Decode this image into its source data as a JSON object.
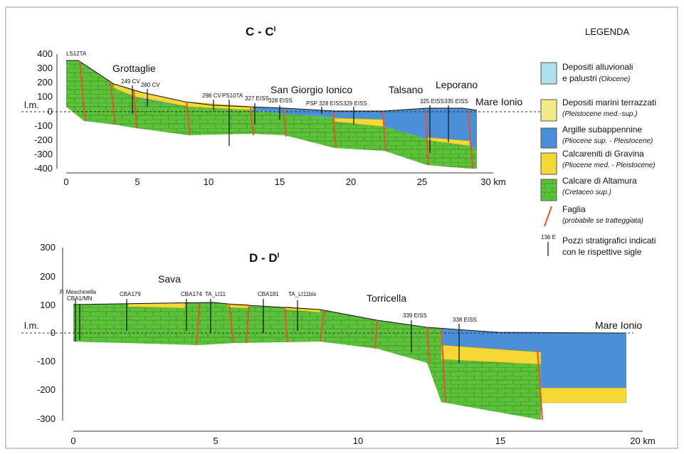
{
  "section_top": {
    "title": {
      "main": "C - C",
      "sup": "I"
    },
    "yticks": [
      "400",
      "300",
      "200",
      "100",
      "l.m.",
      "0",
      "-100",
      "-200",
      "-300",
      "-400"
    ],
    "xticks": [
      "0",
      "5",
      "10",
      "15",
      "20",
      "25",
      "30 km"
    ],
    "labels": [
      "LS12TA",
      "Grottaglie",
      "249 CV",
      "280 CV",
      "298 CV",
      "PS10TA",
      "327 EISS",
      "328 EISS",
      "San Giorgio Ionico",
      "PSP 328 EISS",
      "329 EISS",
      "Talsano",
      "Leporano",
      "325 EISS",
      "335 EISS",
      "Mare Ionio"
    ]
  },
  "section_bottom": {
    "title": {
      "main": "D - D",
      "sup": "I"
    },
    "yticks": [
      "300",
      "200",
      "100",
      "l.m.",
      "0",
      "-100",
      "-200",
      "-300"
    ],
    "xticks": [
      "0",
      "5",
      "10",
      "15",
      "20 km"
    ],
    "labels": [
      "P. Meschinella",
      "CBA1/MN",
      "Sava",
      "CBA179",
      "CBA174",
      "TA_LI11",
      "CBA181",
      "TA_LI11bis",
      "Torricella",
      "339 EISS",
      "338 EISS",
      "Mare Ionio"
    ]
  },
  "legend": {
    "title": "LEGENDA",
    "items": [
      {
        "line1": "Depositi alluvionali",
        "line2": "e palustri",
        "italic": "(Olocene)"
      },
      {
        "line1": "Depositi marini terrazzati",
        "italic": "(Pleistocene med.-sup.)"
      },
      {
        "line1": "Argille subappennine",
        "italic": "(Pliocene sup. - Pleistocene)"
      },
      {
        "line1": "Calcareniti di Gravina",
        "italic": "(Pliocene med. - Pleistocene)"
      },
      {
        "line1": "Calcare di Altamura",
        "italic": "(Cretaceo sup.)"
      },
      {
        "line1": "Faglia",
        "italic": "(probabile se tratteggiata)"
      },
      {
        "line1": "Pozzi stratigrafici indicati",
        "line2": "con le rispettive sigle",
        "sample": "136 E"
      }
    ]
  }
}
